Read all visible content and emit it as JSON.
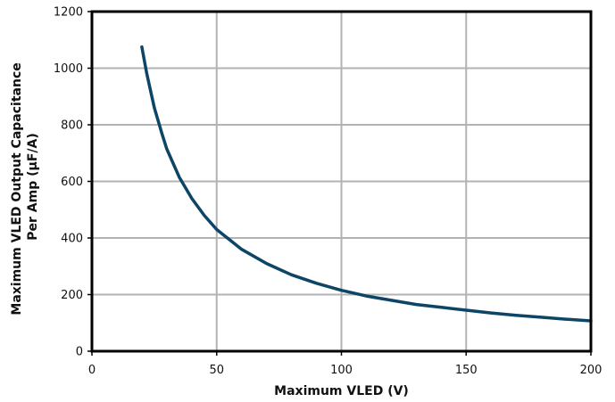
{
  "chart_data": {
    "type": "line",
    "xlabel": "Maximum VLED (V)",
    "ylabel_lines": [
      "Maximum VLED Output Capacitance",
      "Per Amp (µF/A)"
    ],
    "xlim": [
      0,
      200
    ],
    "ylim": [
      0,
      1200
    ],
    "x_ticks": [
      0,
      50,
      100,
      150,
      200
    ],
    "y_ticks": [
      0,
      200,
      400,
      600,
      800,
      1000,
      1200
    ],
    "x_tick_labels": [
      "0",
      "50",
      "100",
      "150",
      "200"
    ],
    "y_tick_labels": [
      "0",
      "200",
      "400",
      "600",
      "800",
      "1000",
      "1200"
    ],
    "grid": true,
    "series_color": "#0d4566",
    "grid_color": "#b3b3b3",
    "series": [
      {
        "x": [
          20,
          22,
          25,
          28,
          30,
          35,
          40,
          45,
          50,
          60,
          70,
          80,
          90,
          100,
          110,
          120,
          130,
          140,
          150,
          160,
          170,
          180,
          190,
          200
        ],
        "y": [
          1075,
          980,
          860,
          770,
          715,
          615,
          540,
          480,
          430,
          360,
          310,
          270,
          240,
          215,
          195,
          180,
          165,
          155,
          145,
          135,
          127,
          120,
          113,
          107
        ]
      }
    ]
  }
}
